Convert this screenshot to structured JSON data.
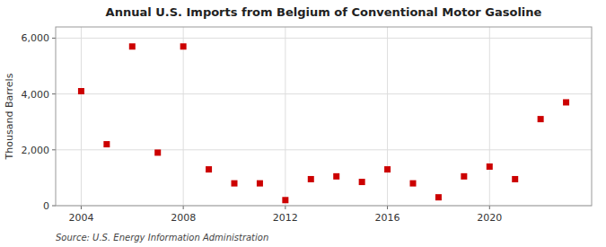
{
  "chart_data": {
    "type": "scatter",
    "title": "Annual U.S. Imports from Belgium of Conventional Motor Gasoline",
    "y_label": "Thousand Barrels",
    "annotations": [
      "Source: U.S. Energy Information Administration"
    ],
    "x": [
      2004,
      2005,
      2006,
      2007,
      2008,
      2009,
      2010,
      2011,
      2012,
      2013,
      2014,
      2015,
      2016,
      2017,
      2018,
      2019,
      2020,
      2021,
      2022,
      2023
    ],
    "values": [
      4100,
      2200,
      5700,
      1900,
      5700,
      1300,
      800,
      800,
      200,
      950,
      1050,
      850,
      1300,
      800,
      300,
      1050,
      1400,
      950,
      3100,
      3700
    ],
    "color": "#cc0000",
    "marker": "square",
    "xlim": [
      2003.0,
      2024.0
    ],
    "ylim": [
      0,
      6400
    ],
    "xticks": [
      2004,
      2008,
      2012,
      2016,
      2020
    ],
    "yticks": [
      0,
      {
        "value": 2000,
        "label": "2,000"
      },
      {
        "value": 4000,
        "label": "4,000"
      },
      {
        "value": 6000,
        "label": "6,000"
      }
    ],
    "grid": true
  }
}
